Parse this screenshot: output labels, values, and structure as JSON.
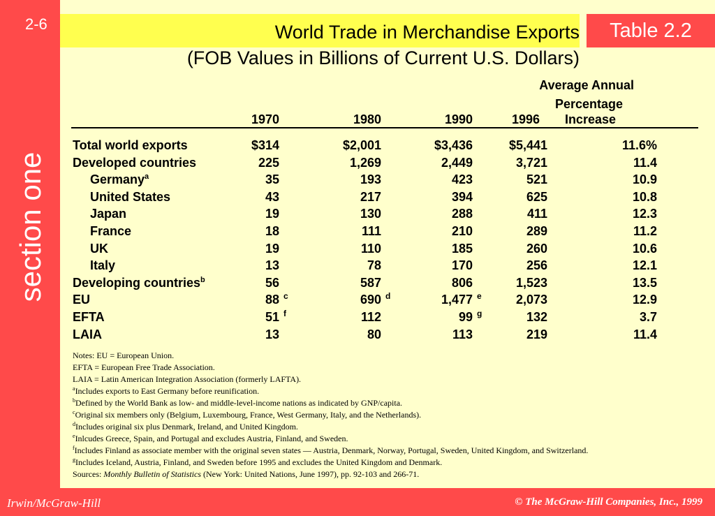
{
  "slide": {
    "number": "2-6",
    "section_label": "section one",
    "table_tag": "Table 2.2",
    "title_line1": "World Trade in Merchandise Exports",
    "title_line2": "(FOB Values in Billions of Current U.S. Dollars)"
  },
  "table": {
    "headers": {
      "y1970": "1970",
      "y1980": "1980",
      "y1990": "1990",
      "y1996": "1996",
      "avg_line1": "Average Annual",
      "avg_line2": "Percentage",
      "avg_line3": "Increase"
    },
    "rows": [
      {
        "label": "Total world exports",
        "sup": "",
        "indent": false,
        "v1970": "$314",
        "f1970": "",
        "v1980": "$2,001",
        "f1980": "",
        "v1990": "$3,436",
        "f1990": "",
        "v1996": "$5,441",
        "pct": "11.6%"
      },
      {
        "label": "Developed countries",
        "sup": "",
        "indent": false,
        "v1970": "225",
        "f1970": "",
        "v1980": "1,269",
        "f1980": "",
        "v1990": "2,449",
        "f1990": "",
        "v1996": "3,721",
        "pct": "11.4"
      },
      {
        "label": "Germany",
        "sup": "a",
        "indent": true,
        "v1970": "35",
        "f1970": "",
        "v1980": "193",
        "f1980": "",
        "v1990": "423",
        "f1990": "",
        "v1996": "521",
        "pct": "10.9"
      },
      {
        "label": "United States",
        "sup": "",
        "indent": true,
        "v1970": "43",
        "f1970": "",
        "v1980": "217",
        "f1980": "",
        "v1990": "394",
        "f1990": "",
        "v1996": "625",
        "pct": "10.8"
      },
      {
        "label": "Japan",
        "sup": "",
        "indent": true,
        "v1970": "19",
        "f1970": "",
        "v1980": "130",
        "f1980": "",
        "v1990": "288",
        "f1990": "",
        "v1996": "411",
        "pct": "12.3"
      },
      {
        "label": "France",
        "sup": "",
        "indent": true,
        "v1970": "18",
        "f1970": "",
        "v1980": "111",
        "f1980": "",
        "v1990": "210",
        "f1990": "",
        "v1996": "289",
        "pct": "11.2"
      },
      {
        "label": "UK",
        "sup": "",
        "indent": true,
        "v1970": "19",
        "f1970": "",
        "v1980": "110",
        "f1980": "",
        "v1990": "185",
        "f1990": "",
        "v1996": "260",
        "pct": "10.6"
      },
      {
        "label": "Italy",
        "sup": "",
        "indent": true,
        "v1970": "13",
        "f1970": "",
        "v1980": "78",
        "f1980": "",
        "v1990": "170",
        "f1990": "",
        "v1996": "256",
        "pct": "12.1"
      },
      {
        "label": "Developing countries",
        "sup": "b",
        "indent": false,
        "v1970": "56",
        "f1970": "",
        "v1980": "587",
        "f1980": "",
        "v1990": "806",
        "f1990": "",
        "v1996": "1,523",
        "pct": "13.5"
      },
      {
        "label": "EU",
        "sup": "",
        "indent": false,
        "v1970": "88",
        "f1970": "c",
        "v1980": "690",
        "f1980": "d",
        "v1990": "1,477",
        "f1990": "e",
        "v1996": "2,073",
        "pct": "12.9"
      },
      {
        "label": "EFTA",
        "sup": "",
        "indent": false,
        "v1970": "51",
        "f1970": "f",
        "v1980": "112",
        "f1980": "",
        "v1990": "99",
        "f1990": "g",
        "v1996": "132",
        "pct": "3.7"
      },
      {
        "label": "LAIA",
        "sup": "",
        "indent": false,
        "v1970": "13",
        "f1970": "",
        "v1980": "80",
        "f1980": "",
        "v1990": "113",
        "f1990": "",
        "v1996": "219",
        "pct": "11.4"
      }
    ]
  },
  "notes": [
    {
      "sup": "",
      "text": "Notes: EU = European Union."
    },
    {
      "sup": "",
      "text": "EFTA = European Free Trade Association."
    },
    {
      "sup": "",
      "text": "LAIA = Latin American Integration Association (formerly LAFTA)."
    },
    {
      "sup": "a",
      "text": "Includes exports to East Germany before reunification."
    },
    {
      "sup": "b",
      "text": "Defined by the World Bank as low- and middle-level-income nations as indicated by GNP/capita."
    },
    {
      "sup": "c",
      "text": "Original six members only (Belgium, Luxembourg, France, West Germany, Italy, and the Netherlands)."
    },
    {
      "sup": "d",
      "text": "Includes original six plus Denmark, Ireland, and United Kingdom."
    },
    {
      "sup": "e",
      "text": "Inlcudes Greece, Spain, and Portugal and excludes Austria, Finland, and Sweden."
    },
    {
      "sup": "f",
      "text": "Includes Finland as associate member with the original seven states — Austria, Denmark, Norway, Portugal, Sweden, United Kingdom, and Switzerland."
    },
    {
      "sup": "g",
      "text": "Includes Iceland, Austria, Finland, and Sweden before 1995 and excludes the United Kingdom and Denmark."
    }
  ],
  "sources": {
    "prefix": "Sources: ",
    "title": "Monthly Bulletin of Statistics",
    "rest": " (New York: United Nations, June 1997), pp. 92-103 and 266-71."
  },
  "footer": {
    "left": "Irwin/McGraw-Hill",
    "right": "© The McGraw-Hill Companies, Inc., 1999"
  },
  "colors": {
    "sidebar": "#FF4A4A",
    "content_bg": "#FFFFCC",
    "title_band": "#FFFF4F"
  }
}
